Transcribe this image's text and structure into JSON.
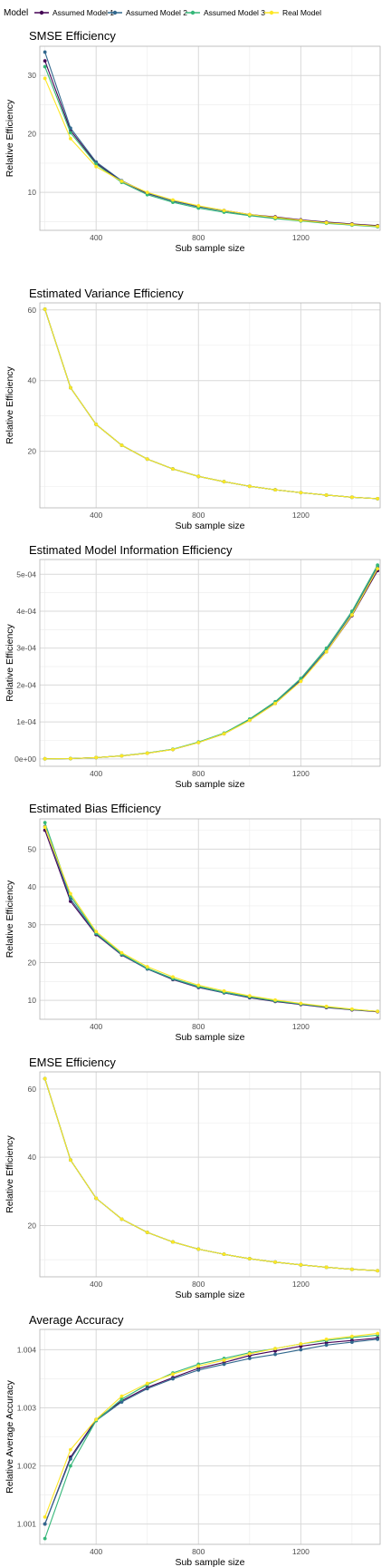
{
  "legend": {
    "title": "Model",
    "entries": [
      {
        "name": "Assumed Model 1",
        "color": "#440154"
      },
      {
        "name": "Assumed Model 2",
        "color": "#31688E"
      },
      {
        "name": "Assumed Model 3",
        "color": "#35B779"
      },
      {
        "name": "Real Model",
        "color": "#FDE725"
      }
    ]
  },
  "chart_data": [
    {
      "type": "line",
      "title": "SMSE Efficiency",
      "xlabel": "Sub sample size",
      "ylabel": "Relative Efficiency",
      "xlim": [
        180,
        1510
      ],
      "ylim": [
        3.5,
        35
      ],
      "xticks": [
        400,
        800,
        1200
      ],
      "xtick_labels": [
        "400",
        "800",
        "1200"
      ],
      "yticks": [
        10,
        20,
        30
      ],
      "ytick_labels": [
        "10",
        "20",
        "30"
      ],
      "x": [
        200,
        300,
        400,
        500,
        600,
        700,
        800,
        900,
        1000,
        1100,
        1200,
        1300,
        1400,
        1500
      ],
      "series": [
        {
          "name": "Assumed Model 1",
          "values": [
            32.5,
            20.6,
            15.0,
            11.9,
            9.8,
            8.5,
            7.6,
            6.9,
            6.2,
            5.8,
            5.3,
            4.9,
            4.6,
            4.3
          ]
        },
        {
          "name": "Assumed Model 2",
          "values": [
            34.0,
            21.0,
            15.2,
            12.0,
            9.9,
            8.5,
            7.5,
            6.8,
            6.1,
            5.6,
            5.2,
            4.8,
            4.5,
            4.2
          ]
        },
        {
          "name": "Assumed Model 3",
          "values": [
            31.5,
            20.2,
            14.8,
            11.7,
            9.6,
            8.3,
            7.3,
            6.6,
            6.0,
            5.5,
            5.1,
            4.7,
            4.4,
            4.1
          ]
        },
        {
          "name": "Real Model",
          "values": [
            29.5,
            19.2,
            14.4,
            11.9,
            10.0,
            8.7,
            7.7,
            6.9,
            6.2,
            5.7,
            5.2,
            4.8,
            4.5,
            4.2
          ]
        }
      ]
    },
    {
      "type": "line",
      "title": "Estimated Variance Efficiency",
      "xlabel": "Sub sample size",
      "ylabel": "Relative Efficiency",
      "xlim": [
        180,
        1510
      ],
      "ylim": [
        4,
        62
      ],
      "xticks": [
        400,
        800,
        1200
      ],
      "xtick_labels": [
        "400",
        "800",
        "1200"
      ],
      "yticks": [
        20,
        40,
        60
      ],
      "ytick_labels": [
        "20",
        "40",
        "60"
      ],
      "x": [
        200,
        300,
        400,
        500,
        600,
        700,
        800,
        900,
        1000,
        1100,
        1200,
        1300,
        1400,
        1500
      ],
      "series": [
        {
          "name": "Assumed Model 1",
          "values": [
            60.2,
            38.0,
            27.6,
            21.7,
            17.8,
            15.0,
            12.9,
            11.4,
            10.1,
            9.1,
            8.3,
            7.6,
            7.0,
            6.6
          ]
        },
        {
          "name": "Assumed Model 2",
          "values": [
            60.2,
            38.0,
            27.6,
            21.7,
            17.8,
            15.0,
            12.9,
            11.4,
            10.1,
            9.1,
            8.3,
            7.6,
            7.0,
            6.6
          ]
        },
        {
          "name": "Assumed Model 3",
          "values": [
            60.2,
            38.0,
            27.6,
            21.7,
            17.8,
            15.0,
            12.9,
            11.4,
            10.1,
            9.1,
            8.3,
            7.6,
            7.0,
            6.6
          ]
        },
        {
          "name": "Real Model",
          "values": [
            60.2,
            38.0,
            27.6,
            21.7,
            17.8,
            15.0,
            12.9,
            11.4,
            10.1,
            9.1,
            8.3,
            7.6,
            7.0,
            6.6
          ]
        }
      ]
    },
    {
      "type": "line",
      "title": "Estimated Model Information Efficiency",
      "xlabel": "Sub sample size",
      "ylabel": "Relative Efficiency",
      "xlim": [
        180,
        1510
      ],
      "ylim": [
        -2e-05,
        0.00054
      ],
      "xticks": [
        400,
        800,
        1200
      ],
      "xtick_labels": [
        "400",
        "800",
        "1200"
      ],
      "yticks": [
        0,
        0.0001,
        0.0002,
        0.0003,
        0.0004,
        0.0005
      ],
      "ytick_labels": [
        "0e+00",
        "1e-04",
        "2e-04",
        "3e-04",
        "4e-04",
        "5e-04"
      ],
      "x": [
        200,
        300,
        400,
        500,
        600,
        700,
        800,
        900,
        1000,
        1100,
        1200,
        1300,
        1400,
        1500
      ],
      "series": [
        {
          "name": "Assumed Model 1",
          "values": [
            2e-07,
            9e-07,
            3.5e-06,
            8.2e-06,
            1.55e-05,
            2.55e-05,
            4.45e-05,
            6.8e-05,
            0.000105,
            0.00015,
            0.000212,
            0.00029,
            0.000388,
            0.00051
          ]
        },
        {
          "name": "Assumed Model 2",
          "values": [
            2e-07,
            9e-07,
            3.5e-06,
            8.3e-06,
            1.57e-05,
            2.58e-05,
            4.48e-05,
            6.9e-05,
            0.000106,
            0.000152,
            0.000215,
            0.000295,
            0.000395,
            0.00052
          ]
        },
        {
          "name": "Assumed Model 3",
          "values": [
            2e-07,
            9e-07,
            3.6e-06,
            8.4e-06,
            1.6e-05,
            2.62e-05,
            4.55e-05,
            7e-05,
            0.000108,
            0.000155,
            0.000218,
            0.0003,
            0.0004,
            0.000525
          ]
        },
        {
          "name": "Real Model",
          "values": [
            2e-07,
            9e-07,
            3.5e-06,
            8.2e-06,
            1.54e-05,
            2.54e-05,
            4.42e-05,
            6.8e-05,
            0.000104,
            0.00015,
            0.00021,
            0.00029,
            0.00039,
            0.000515
          ]
        }
      ]
    },
    {
      "type": "line",
      "title": "Estimated Bias Efficiency",
      "xlabel": "Sub sample size",
      "ylabel": "Relative Efficiency",
      "xlim": [
        180,
        1510
      ],
      "ylim": [
        5,
        58
      ],
      "xticks": [
        400,
        800,
        1200
      ],
      "xtick_labels": [
        "400",
        "800",
        "1200"
      ],
      "yticks": [
        10,
        20,
        30,
        40,
        50
      ],
      "ytick_labels": [
        "10",
        "20",
        "30",
        "40",
        "50"
      ],
      "x": [
        200,
        300,
        400,
        500,
        600,
        700,
        800,
        900,
        1000,
        1100,
        1200,
        1300,
        1400,
        1500
      ],
      "series": [
        {
          "name": "Assumed Model 1",
          "values": [
            55.0,
            36.2,
            27.4,
            22.0,
            18.3,
            15.5,
            13.4,
            12.0,
            10.7,
            9.7,
            8.9,
            8.1,
            7.5,
            7.0
          ]
        },
        {
          "name": "Assumed Model 2",
          "values": [
            56.0,
            36.8,
            27.6,
            22.1,
            18.3,
            15.6,
            13.5,
            12.0,
            10.8,
            9.8,
            9.0,
            8.2,
            7.6,
            7.1
          ]
        },
        {
          "name": "Assumed Model 3",
          "values": [
            57.0,
            37.6,
            27.8,
            22.3,
            18.5,
            15.8,
            13.7,
            12.2,
            11.0,
            9.9,
            9.1,
            8.3,
            7.6,
            7.1
          ]
        },
        {
          "name": "Real Model",
          "values": [
            55.8,
            38.2,
            28.2,
            22.6,
            18.9,
            16.2,
            14.0,
            12.5,
            11.2,
            10.1,
            9.2,
            8.4,
            7.7,
            7.1
          ]
        }
      ]
    },
    {
      "type": "line",
      "title": "EMSE Efficiency",
      "xlabel": "Sub sample size",
      "ylabel": "Relative Efficiency",
      "xlim": [
        180,
        1510
      ],
      "ylim": [
        5,
        65
      ],
      "xticks": [
        400,
        800,
        1200
      ],
      "xtick_labels": [
        "400",
        "800",
        "1200"
      ],
      "yticks": [
        20,
        40,
        60
      ],
      "ytick_labels": [
        "20",
        "40",
        "60"
      ],
      "x": [
        200,
        300,
        400,
        500,
        600,
        700,
        800,
        900,
        1000,
        1100,
        1200,
        1300,
        1400,
        1500
      ],
      "series": [
        {
          "name": "Assumed Model 1",
          "values": [
            63.0,
            39.2,
            28.0,
            21.9,
            18.0,
            15.2,
            13.1,
            11.6,
            10.3,
            9.3,
            8.5,
            7.8,
            7.2,
            6.8
          ]
        },
        {
          "name": "Assumed Model 2",
          "values": [
            63.0,
            39.2,
            28.0,
            21.9,
            18.0,
            15.2,
            13.1,
            11.6,
            10.3,
            9.3,
            8.5,
            7.8,
            7.2,
            6.8
          ]
        },
        {
          "name": "Assumed Model 3",
          "values": [
            63.0,
            39.2,
            28.0,
            21.9,
            18.0,
            15.2,
            13.1,
            11.6,
            10.3,
            9.3,
            8.5,
            7.8,
            7.2,
            6.8
          ]
        },
        {
          "name": "Real Model",
          "values": [
            63.0,
            39.2,
            28.0,
            21.9,
            18.0,
            15.2,
            13.1,
            11.6,
            10.3,
            9.3,
            8.5,
            7.8,
            7.2,
            6.8
          ]
        }
      ]
    },
    {
      "type": "line",
      "title": "Average Accuracy",
      "xlabel": "Sub sample size",
      "ylabel": "Relative Average Accuracy",
      "xlim": [
        180,
        1510
      ],
      "ylim": [
        1.00065,
        1.00435
      ],
      "xticks": [
        400,
        800,
        1200
      ],
      "xtick_labels": [
        "400",
        "800",
        "1200"
      ],
      "yticks": [
        1.001,
        1.002,
        1.003,
        1.004
      ],
      "ytick_labels": [
        "1.001",
        "1.002",
        "1.003",
        "1.004"
      ],
      "x": [
        200,
        300,
        400,
        500,
        600,
        700,
        800,
        900,
        1000,
        1100,
        1200,
        1300,
        1400,
        1500
      ],
      "series": [
        {
          "name": "Assumed Model 1",
          "values": [
            1.001,
            1.00215,
            1.0028,
            1.00312,
            1.00335,
            1.00352,
            1.00368,
            1.00378,
            1.0039,
            1.00398,
            1.00406,
            1.00412,
            1.00416,
            1.0042
          ]
        },
        {
          "name": "Assumed Model 2",
          "values": [
            1.001,
            1.00212,
            1.00278,
            1.0031,
            1.00333,
            1.0035,
            1.00365,
            1.00375,
            1.00385,
            1.00392,
            1.004,
            1.00408,
            1.00413,
            1.00418
          ]
        },
        {
          "name": "Assumed Model 3",
          "values": [
            1.00075,
            1.002,
            1.00278,
            1.00315,
            1.0034,
            1.0036,
            1.00375,
            1.00385,
            1.00395,
            1.00402,
            1.0041,
            1.00416,
            1.00421,
            1.00425
          ]
        },
        {
          "name": "Real Model",
          "values": [
            1.00112,
            1.00228,
            1.0028,
            1.0032,
            1.00342,
            1.00358,
            1.00372,
            1.00382,
            1.00393,
            1.00402,
            1.0041,
            1.00418,
            1.00423,
            1.00428
          ]
        }
      ]
    }
  ]
}
